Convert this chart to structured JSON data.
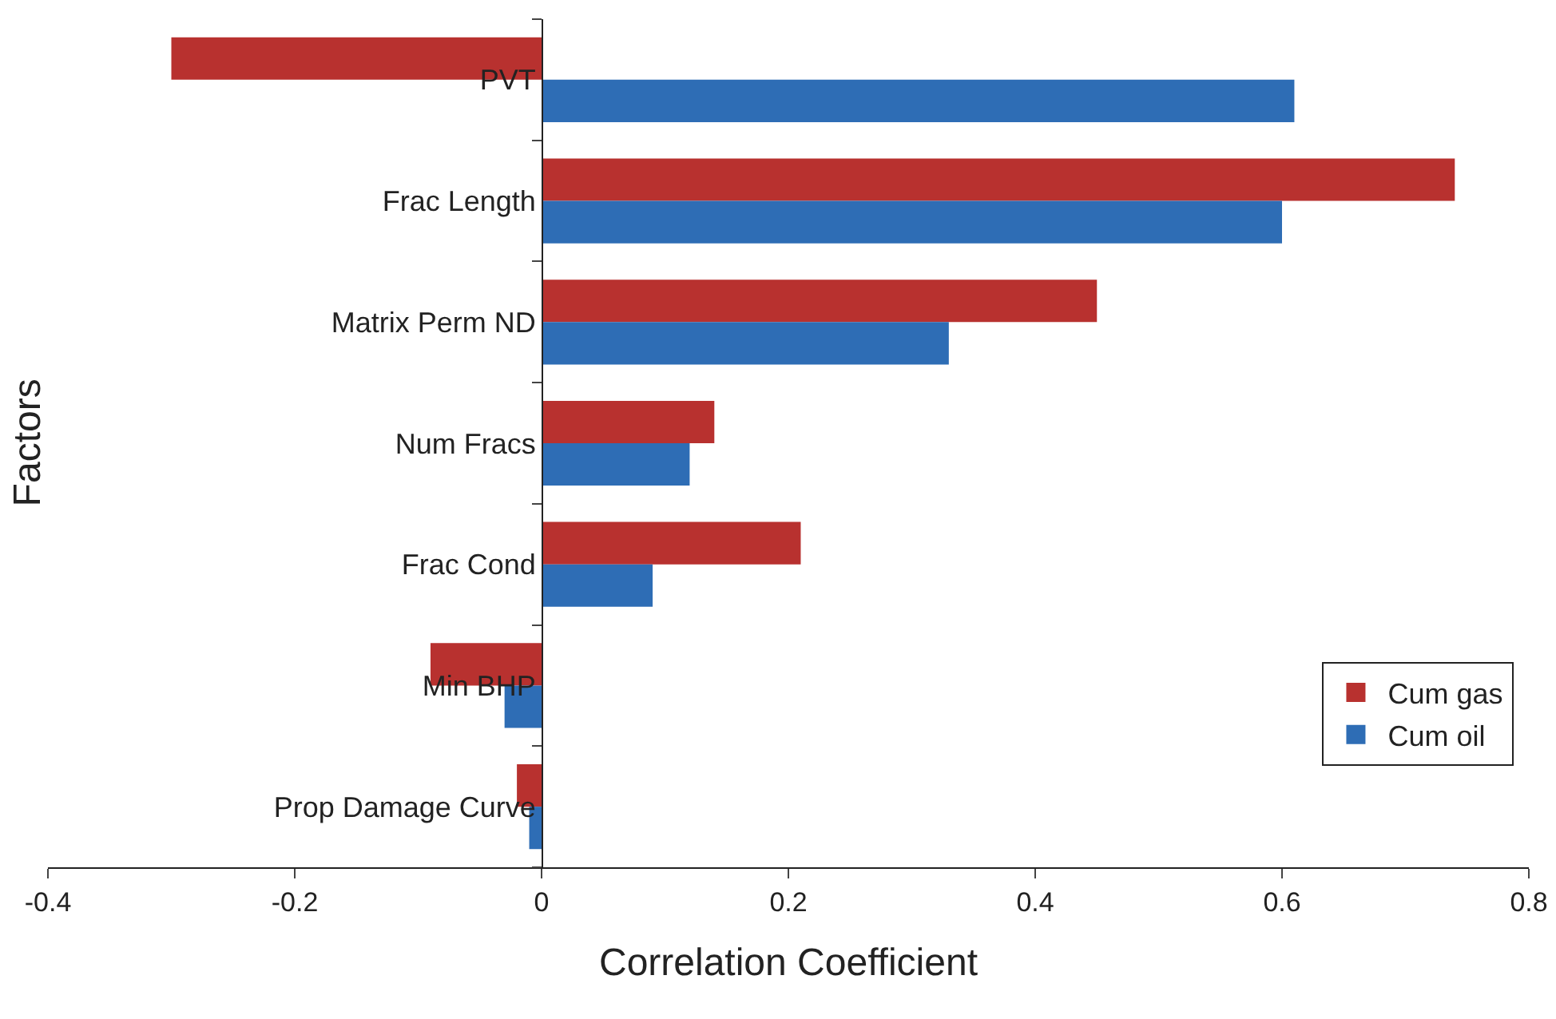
{
  "chart_data": {
    "type": "bar",
    "orientation": "horizontal",
    "xlabel": "Correlation Coefficient",
    "ylabel": "Factors",
    "categories": [
      "PVT",
      "Frac Length",
      "Matrix Perm ND",
      "Num Fracs",
      "Frac Cond",
      "Min BHP",
      "Prop Damage Curve"
    ],
    "series": [
      {
        "name": "Cum gas",
        "color": "#b8312f",
        "values": [
          -0.3,
          0.74,
          0.45,
          0.14,
          0.21,
          -0.09,
          -0.02
        ]
      },
      {
        "name": "Cum oil",
        "color": "#2e6db5",
        "values": [
          0.61,
          0.6,
          0.33,
          0.12,
          0.09,
          -0.03,
          -0.01
        ]
      }
    ],
    "xlim": [
      -0.4,
      0.8
    ],
    "xticks": [
      -0.4,
      -0.2,
      0,
      0.2,
      0.4,
      0.6,
      0.8
    ],
    "grid": false,
    "legend": "bottom right"
  }
}
